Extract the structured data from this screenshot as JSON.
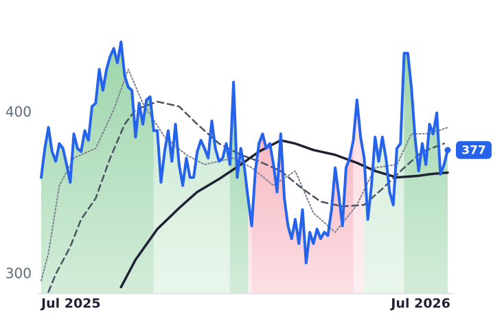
{
  "chart_data": {
    "type": "line",
    "categories": [
      "Jul 2025",
      null,
      null,
      null,
      null,
      null,
      null,
      null,
      null,
      null,
      null,
      null,
      null,
      null,
      null,
      null,
      null,
      null,
      null,
      null,
      null,
      null,
      null,
      null,
      null,
      null,
      null,
      null,
      null,
      null,
      null,
      null,
      null,
      null,
      null,
      null,
      null,
      null,
      null,
      null,
      null,
      null,
      null,
      null,
      null,
      null,
      null,
      null,
      null,
      null,
      null,
      null,
      null,
      null,
      null,
      null,
      null,
      null,
      null,
      null,
      null,
      null,
      null,
      null,
      null,
      null,
      null,
      null,
      null,
      null,
      null,
      null,
      null,
      null,
      null,
      null,
      null,
      null,
      null,
      null,
      null,
      null,
      null,
      null,
      null,
      null,
      null,
      null,
      null,
      null,
      null,
      null,
      null,
      null,
      null,
      null,
      null,
      null,
      null,
      null,
      null,
      null,
      null,
      null,
      null,
      null,
      null,
      null,
      null,
      null,
      null,
      null,
      "Jul 2026"
    ],
    "ylim": [
      288,
      470
    ],
    "yticks": [
      300,
      400
    ],
    "last_value": 377,
    "shading": [
      {
        "from": 0,
        "to": 31,
        "color": "#9dd5ab"
      },
      {
        "from": 31,
        "to": 52,
        "color": "#cfebd6"
      },
      {
        "from": 52,
        "to": 57,
        "color": "#9dd5ab"
      },
      {
        "from": 57,
        "to": 58,
        "color": "#fbdbe1"
      },
      {
        "from": 58,
        "to": 86,
        "color": "#f7b8c3"
      },
      {
        "from": 86,
        "to": 89,
        "color": "#fbdbe1"
      },
      {
        "from": 89,
        "to": 100,
        "color": "#cfebd6"
      },
      {
        "from": 100,
        "to": 112,
        "color": "#9dd5ab"
      }
    ],
    "series": [
      {
        "color": "#2563eb",
        "style": "solid",
        "width": 4,
        "values": [
          360,
          378,
          391,
          376,
          370,
          381,
          378,
          368,
          357,
          387,
          378,
          376,
          389,
          383,
          404,
          406,
          427,
          414,
          427,
          435,
          440,
          431,
          444,
          423,
          416,
          414,
          385,
          406,
          393,
          408,
          410,
          389,
          389,
          357,
          376,
          389,
          370,
          393,
          368,
          355,
          372,
          360,
          360,
          376,
          383,
          378,
          372,
          395,
          378,
          370,
          372,
          381,
          368,
          419,
          360,
          378,
          366,
          347,
          330,
          364,
          381,
          387,
          378,
          381,
          368,
          351,
          387,
          347,
          330,
          322,
          334,
          319,
          340,
          307,
          326,
          319,
          328,
          322,
          326,
          324,
          340,
          366,
          349,
          330,
          366,
          372,
          383,
          408,
          385,
          372,
          334,
          355,
          385,
          370,
          385,
          372,
          351,
          343,
          378,
          381,
          437,
          437,
          416,
          385,
          364,
          381,
          368,
          393,
          387,
          400,
          362,
          368,
          377
        ]
      },
      {
        "color": "#1e2233",
        "style": "solid",
        "width": 3.5,
        "x": [
          22,
          26,
          32,
          38,
          43,
          49,
          55,
          60,
          66,
          70,
          75,
          81,
          87,
          92,
          98,
          104,
          107,
          112
        ],
        "values": [
          292,
          309,
          328,
          341,
          351,
          359,
          368,
          376,
          383,
          381,
          377,
          374,
          369,
          364,
          360,
          361,
          362,
          363
        ]
      },
      {
        "color": "#4a5261",
        "style": "dashed",
        "width": 2.5,
        "x": [
          2,
          4,
          8,
          11,
          15,
          19,
          23,
          26,
          32,
          38,
          43,
          49,
          55,
          60,
          66,
          72,
          77,
          83,
          89,
          94,
          100,
          105,
          111
        ],
        "values": [
          289,
          300,
          317,
          334,
          347,
          372,
          393,
          402,
          407,
          404,
          393,
          381,
          374,
          370,
          364,
          353,
          345,
          342,
          343,
          353,
          366,
          376,
          381
        ]
      },
      {
        "color": "#7a808c",
        "style": "dotted",
        "width": 2,
        "x": [
          0,
          2,
          5,
          9,
          15,
          20,
          24,
          28,
          34,
          40,
          45,
          53,
          58,
          64,
          70,
          75,
          81,
          87,
          92,
          98,
          102,
          107,
          112
        ],
        "values": [
          296,
          313,
          355,
          372,
          378,
          402,
          427,
          406,
          385,
          374,
          368,
          372,
          366,
          355,
          364,
          338,
          326,
          343,
          366,
          368,
          387,
          387,
          391
        ]
      }
    ]
  }
}
